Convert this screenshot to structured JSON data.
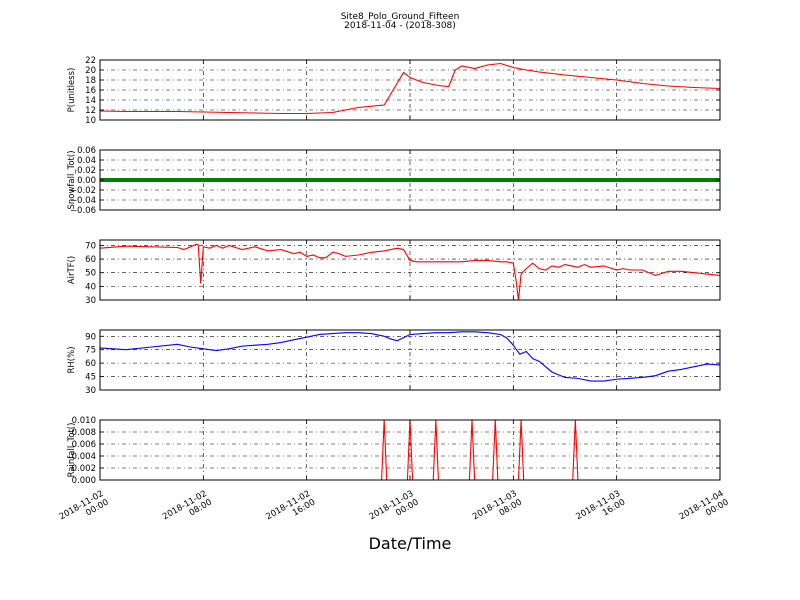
{
  "figure": {
    "title": "Site8_Polo_Ground_Fifteen",
    "subtitle": "2018-11-04 - (2018-308)",
    "xlabel": "Date/Time"
  },
  "chart_data": [
    {
      "type": "line",
      "ylabel": "P(unitless)",
      "ylim": [
        10,
        22
      ],
      "yticks": [
        "10",
        "12",
        "14",
        "16",
        "18",
        "20",
        "22"
      ],
      "grid": true,
      "color": "#ff0000",
      "x": [
        0,
        2,
        4,
        6,
        8,
        10,
        12,
        14,
        16,
        18,
        20,
        22,
        23.5,
        24,
        24.5,
        25,
        26,
        26.5,
        27,
        27.5,
        28,
        29,
        30,
        31,
        32,
        33,
        34,
        35,
        36,
        38,
        40,
        42,
        44,
        46,
        48
      ],
      "series": [
        {
          "values": [
            11.8,
            11.7,
            11.7,
            11.7,
            11.6,
            11.5,
            11.4,
            11.3,
            11.3,
            11.5,
            12.5,
            13,
            19.5,
            18.5,
            18,
            17.5,
            17,
            16.8,
            16.7,
            20,
            20.8,
            20.3,
            21,
            21.3,
            20.5,
            20,
            19.6,
            19.3,
            19,
            18.5,
            18,
            17.3,
            16.8,
            16.5,
            16.3
          ]
        }
      ]
    },
    {
      "type": "line",
      "ylabel": "Snowfall_Tot()",
      "ylim": [
        -0.06,
        0.06
      ],
      "yticks": [
        "−0.06",
        "−0.04",
        "−0.02",
        "0.00",
        "0.02",
        "0.04",
        "0.06"
      ],
      "grid": true,
      "color": "#008000",
      "x": [
        0,
        48
      ],
      "series": [
        {
          "values": [
            0,
            0
          ]
        }
      ]
    },
    {
      "type": "line",
      "ylabel": "AirTF()",
      "ylim": [
        30,
        74
      ],
      "yticks": [
        "30",
        "40",
        "50",
        "60",
        "70"
      ],
      "grid": true,
      "color": "#ff0000",
      "x": [
        0,
        2,
        4,
        6,
        6.5,
        7,
        7.5,
        7.6,
        7.8,
        8,
        8.5,
        9,
        9.5,
        10,
        11,
        12,
        13,
        14,
        15,
        15.5,
        16,
        16.5,
        17,
        17.5,
        18,
        18.5,
        19,
        20,
        21,
        22,
        23,
        23.5,
        24,
        24.5,
        25,
        26,
        27,
        28,
        29,
        30,
        31,
        31.5,
        32,
        32.2,
        32.4,
        32.6,
        33,
        33.5,
        34,
        34.5,
        35,
        35.5,
        36,
        36.5,
        37,
        37.5,
        38,
        39,
        40,
        40.5,
        41,
        42,
        43,
        44,
        45,
        46,
        47,
        48
      ],
      "series": [
        {
          "values": [
            68,
            69.5,
            69,
            68.5,
            67,
            69,
            71,
            70.5,
            42,
            69,
            68,
            70,
            68,
            70,
            67,
            69,
            66,
            67,
            64,
            65,
            62,
            63,
            61,
            61,
            65,
            64,
            62,
            63,
            65,
            66,
            68,
            67,
            59,
            58,
            58,
            58,
            58,
            58,
            59,
            59,
            58,
            58,
            57,
            45,
            30,
            49,
            53,
            57,
            53,
            52,
            55,
            54,
            56,
            55,
            54,
            56,
            54,
            55,
            52,
            53,
            52,
            52,
            48,
            51,
            51,
            50,
            49,
            48
          ]
        }
      ]
    },
    {
      "type": "line",
      "ylabel": "RH(%)",
      "ylim": [
        30,
        97
      ],
      "yticks": [
        "30",
        "45",
        "60",
        "75",
        "90"
      ],
      "grid": true,
      "color": "#0000ff",
      "x": [
        0,
        2,
        4,
        6,
        7,
        8,
        9,
        10,
        11,
        12,
        13,
        14,
        15,
        16,
        17,
        18,
        19,
        20,
        21,
        22,
        22.5,
        23,
        24,
        25,
        26,
        27,
        28,
        29,
        30,
        31,
        31.5,
        32,
        32.5,
        33,
        33.5,
        34,
        35,
        36,
        37,
        38,
        39,
        40,
        41,
        42,
        43,
        44,
        45,
        46,
        47,
        48
      ],
      "series": [
        {
          "values": [
            77,
            75,
            78,
            81,
            78,
            76,
            74,
            76,
            79,
            80,
            81,
            83,
            86,
            89,
            92,
            93,
            94,
            94,
            93,
            90,
            87,
            85,
            92,
            93,
            94,
            94,
            95,
            95,
            94,
            92,
            88,
            80,
            70,
            73,
            65,
            62,
            50,
            44,
            43,
            40,
            40,
            42,
            43,
            44,
            46,
            51,
            53,
            56,
            59,
            58
          ]
        }
      ]
    },
    {
      "type": "line",
      "ylabel": "Rainfall_Tot()",
      "ylim": [
        0,
        0.01
      ],
      "yticks": [
        "0.000",
        "0.002",
        "0.004",
        "0.006",
        "0.008",
        "0.010"
      ],
      "grid": true,
      "color": "#ff0000",
      "x": [
        0,
        21.8,
        22,
        22.2,
        23.8,
        24,
        24.2,
        25.8,
        26,
        26.2,
        28.6,
        28.8,
        29,
        30.4,
        30.6,
        30.8,
        32.4,
        32.6,
        32.8,
        36.6,
        36.8,
        37,
        48
      ],
      "series": [
        {
          "values": [
            0,
            0,
            0.01,
            0,
            0,
            0.01,
            0,
            0,
            0.01,
            0,
            0,
            0.01,
            0,
            0,
            0.01,
            0,
            0,
            0.01,
            0,
            0,
            0.01,
            0,
            0
          ]
        }
      ]
    }
  ],
  "xticks": [
    {
      "x": 0,
      "l1": "2018-11-02",
      "l2": "00:00"
    },
    {
      "x": 8,
      "l1": "2018-11-02",
      "l2": "08:00"
    },
    {
      "x": 16,
      "l1": "2018-11-02",
      "l2": "16:00"
    },
    {
      "x": 24,
      "l1": "2018-11-03",
      "l2": "00:00"
    },
    {
      "x": 32,
      "l1": "2018-11-03",
      "l2": "08:00"
    },
    {
      "x": 40,
      "l1": "2018-11-03",
      "l2": "16:00"
    },
    {
      "x": 48,
      "l1": "2018-11-04",
      "l2": "00:00"
    }
  ]
}
